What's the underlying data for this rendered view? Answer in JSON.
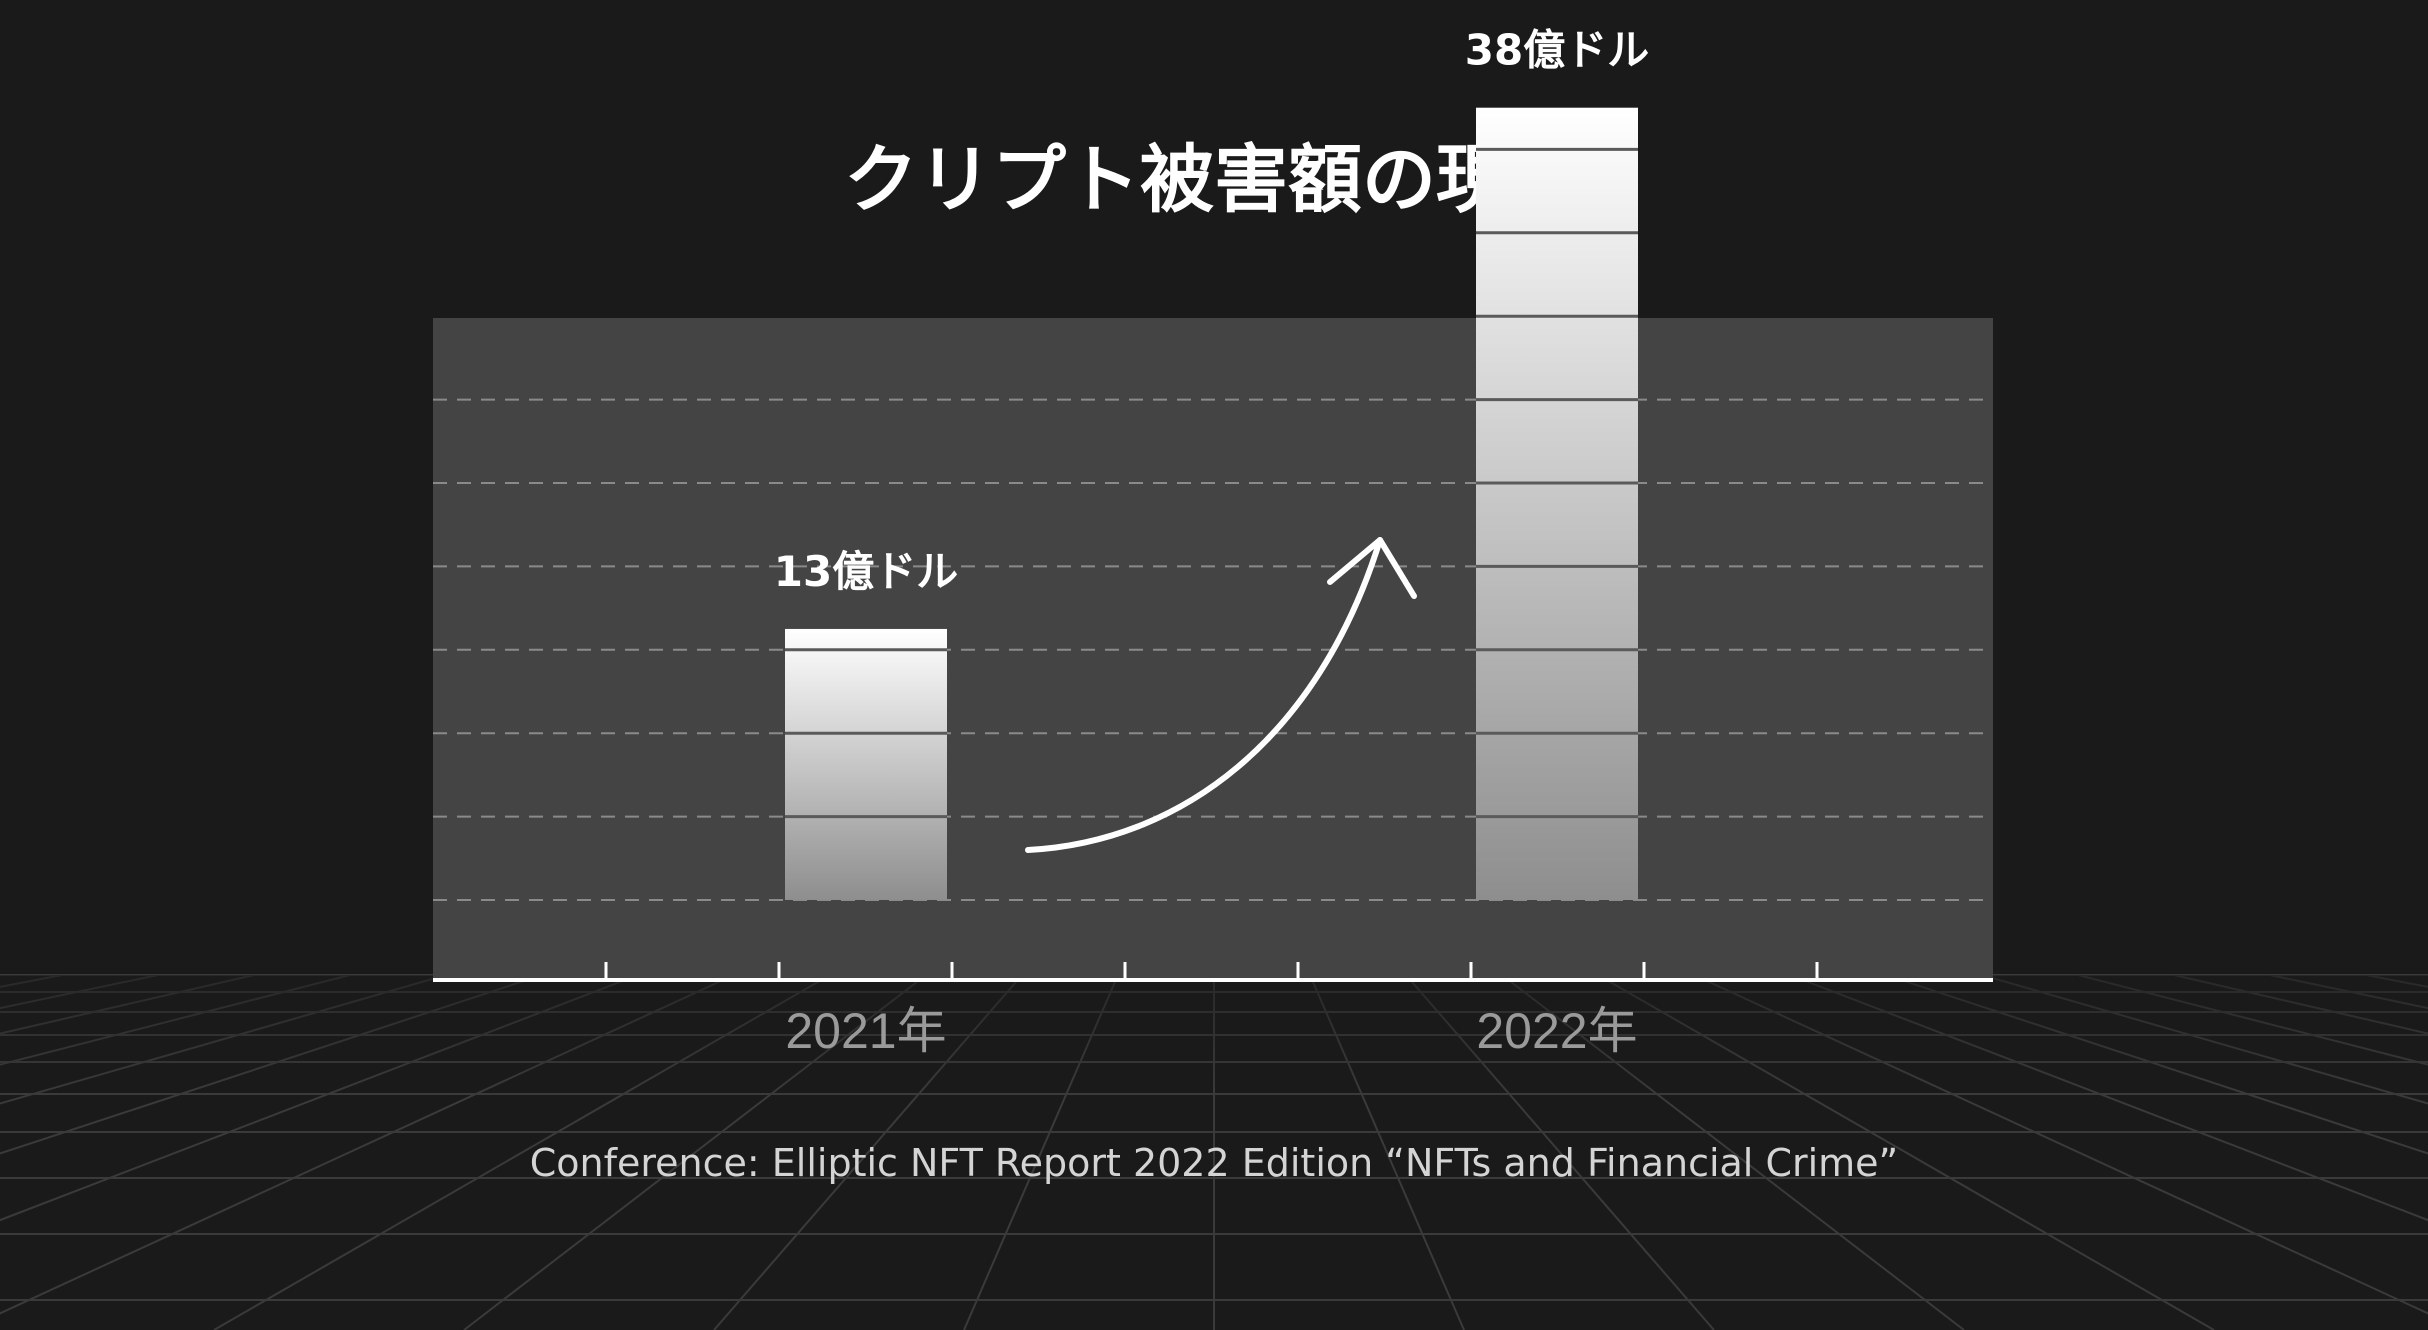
{
  "colors": {
    "background": "#1a1a1a",
    "panel": "#444444",
    "gridline": "#8a8a8a",
    "bar_top": "#ffffff",
    "bar_bottom": "#8e8e8e",
    "arrow": "#ffffff"
  },
  "chart_data": {
    "type": "bar",
    "title": "クリプト被害額の現状",
    "categories": [
      "2021年",
      "2022年"
    ],
    "values": [
      13,
      38
    ],
    "value_labels": [
      "13億ドル",
      "38億ドル"
    ],
    "unit": "億ドル",
    "ylim": [
      0,
      45
    ],
    "grid": true,
    "grid_style": "dashed",
    "annotation": "curved arrow from 2021 bar toward 2022 bar",
    "source": "Conference: Elliptic NFT Report 2022 Edition “NFTs and Financial Crime”"
  }
}
